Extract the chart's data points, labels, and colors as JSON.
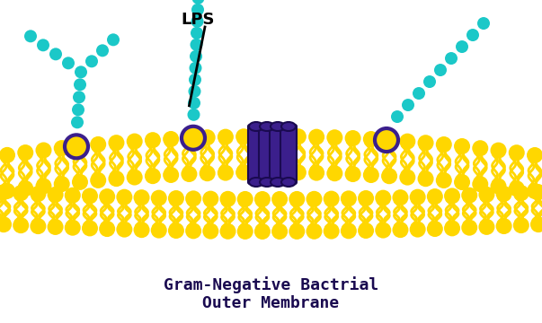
{
  "bg_color": "#ffffff",
  "membrane_color": "#FFD700",
  "lps_bead_color": "#1BC8C8",
  "purple_color": "#3B1F8C",
  "purple_dark": "#1a0a50",
  "title_line1": "Gram-Negative Bactrial",
  "title_line2": "Outer Membrane",
  "title_color": "#1a0a50",
  "lps_label": "LPS",
  "figw": 6.03,
  "figh": 3.6,
  "dpi": 100
}
